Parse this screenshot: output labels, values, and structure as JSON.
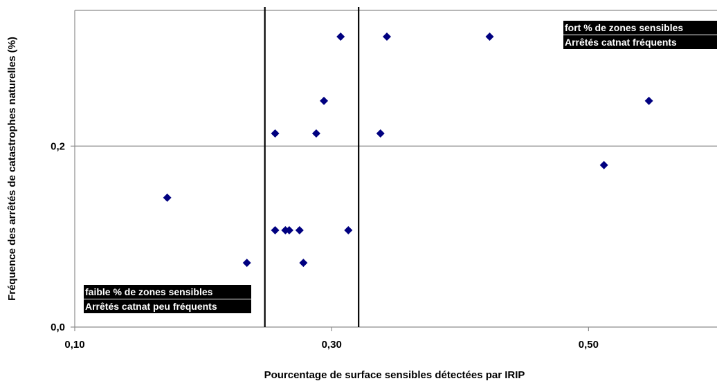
{
  "chart_data": {
    "type": "scatter",
    "title": "",
    "xlabel": "Pourcentage de surface sensibles détectées par IRIP",
    "ylabel": "Fréquence des arrêtés de catastrophes naturelles (%)",
    "xlim": [
      0.1,
      0.6
    ],
    "ylim": [
      0.0,
      0.35
    ],
    "x_ticks": [
      0.1,
      0.3,
      0.5
    ],
    "x_tick_labels": [
      "0,10",
      "0,30",
      "0,50"
    ],
    "y_ticks": [
      0.0,
      0.2
    ],
    "y_tick_labels": [
      "0,0",
      "0,2"
    ],
    "horizontal_reference": 0.2,
    "vertical_thresholds": [
      0.248,
      0.321
    ],
    "marker": "diamond",
    "marker_color": "#000080",
    "points": [
      {
        "x": 0.172,
        "y": 0.143
      },
      {
        "x": 0.234,
        "y": 0.071
      },
      {
        "x": 0.256,
        "y": 0.214
      },
      {
        "x": 0.256,
        "y": 0.107
      },
      {
        "x": 0.264,
        "y": 0.107
      },
      {
        "x": 0.267,
        "y": 0.107
      },
      {
        "x": 0.275,
        "y": 0.107
      },
      {
        "x": 0.278,
        "y": 0.071
      },
      {
        "x": 0.288,
        "y": 0.214
      },
      {
        "x": 0.294,
        "y": 0.25
      },
      {
        "x": 0.307,
        "y": 0.321
      },
      {
        "x": 0.313,
        "y": 0.107
      },
      {
        "x": 0.338,
        "y": 0.214
      },
      {
        "x": 0.343,
        "y": 0.321
      },
      {
        "x": 0.423,
        "y": 0.321
      },
      {
        "x": 0.512,
        "y": 0.179
      },
      {
        "x": 0.547,
        "y": 0.25
      }
    ],
    "annotations": [
      {
        "lines": [
          "fort % de zones sensibles",
          "Arrêtés catnat fréquents"
        ],
        "placement": "top-right"
      },
      {
        "lines": [
          "faible % de zones sensibles",
          "Arrêtés catnat peu fréquents"
        ],
        "placement": "bottom-left"
      }
    ]
  }
}
